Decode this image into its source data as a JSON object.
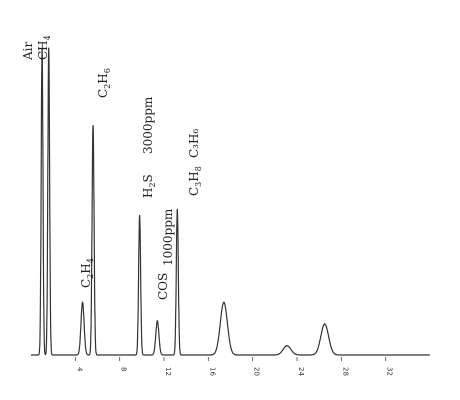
{
  "chart_data": {
    "type": "line",
    "title": "",
    "xlabel": "",
    "ylabel": "",
    "x_ticks": [
      4,
      8,
      12,
      16,
      20,
      24,
      28,
      32
    ],
    "xlim": [
      0,
      36
    ],
    "ylim": [
      0,
      100
    ],
    "baseline_color": "#333333",
    "peaks": [
      {
        "label": "Air",
        "x": 1.0,
        "height": 99
      },
      {
        "label": "CH4",
        "x": 1.6,
        "height": 99
      },
      {
        "label": "C2H4",
        "x": 4.65,
        "height": 17
      },
      {
        "label": "C2H6",
        "x": 5.6,
        "height": 74
      },
      {
        "label": "H2S",
        "x": 9.8,
        "height": 45
      },
      {
        "label": "COS",
        "x": 11.4,
        "height": 11
      },
      {
        "label": "C3H8",
        "x": 13.2,
        "height": 47
      },
      {
        "label": "peak-17",
        "x": 17.4,
        "height": 17
      },
      {
        "label": "peak-23",
        "x": 23.1,
        "height": 3
      },
      {
        "label": "peak-26",
        "x": 26.5,
        "height": 10
      }
    ],
    "annotations": {
      "conc_3000": "3000ppm",
      "conc_1000": "1000ppm",
      "c3h6": "C₃H₆"
    }
  }
}
